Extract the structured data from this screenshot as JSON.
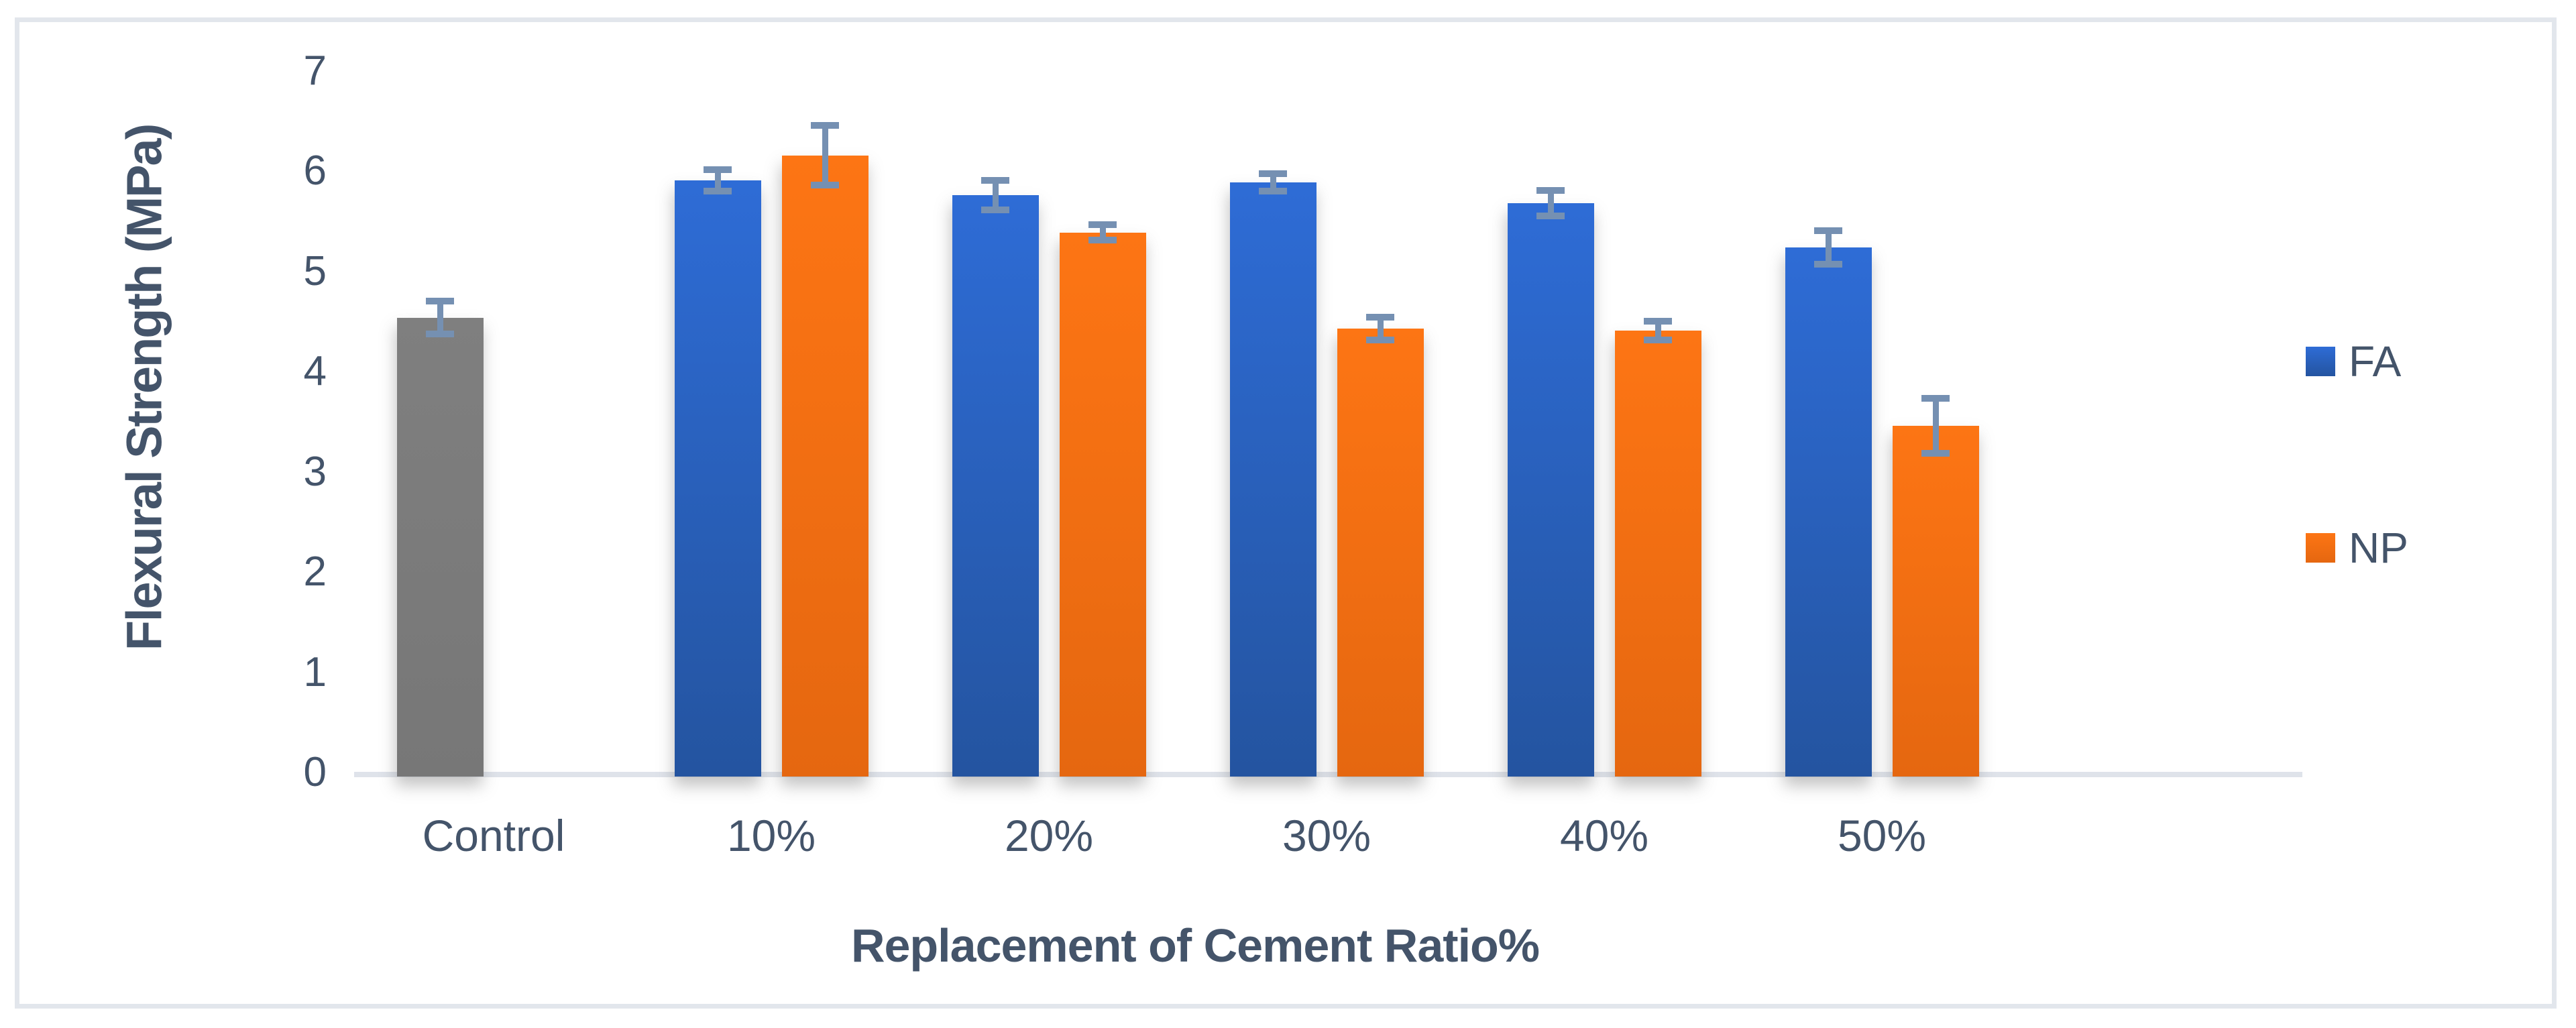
{
  "chart_data": {
    "type": "bar",
    "title": "",
    "ylabel": "Flexural Strength (MPa)",
    "xlabel": "Replacement of Cement Ratio%",
    "categories": [
      "Control",
      "10%",
      "20%",
      "30%",
      "40%",
      "50%"
    ],
    "series": [
      {
        "name": "Control",
        "in_legend": false,
        "color_key": "gray",
        "values": [
          4.54,
          null,
          null,
          null,
          null,
          null
        ],
        "errors": [
          0.2,
          null,
          null,
          null,
          null,
          null
        ]
      },
      {
        "name": "FA",
        "in_legend": true,
        "color_key": "blue",
        "values": [
          null,
          5.91,
          5.76,
          5.89,
          5.68,
          5.24
        ],
        "errors": [
          null,
          0.14,
          0.18,
          0.12,
          0.16,
          0.2
        ]
      },
      {
        "name": "NP",
        "in_legend": true,
        "color_key": "orange",
        "values": [
          null,
          6.16,
          5.39,
          4.43,
          4.41,
          3.46
        ],
        "errors": [
          null,
          0.33,
          0.11,
          0.15,
          0.13,
          0.31
        ]
      }
    ],
    "ylim": [
      0,
      7
    ],
    "ytick_step": 1,
    "yticks": [
      "0",
      "1",
      "2",
      "3",
      "4",
      "5",
      "6",
      "7"
    ],
    "grid": false,
    "error_bars": true,
    "legend_position": "right"
  },
  "legend": {
    "items": [
      {
        "label": "FA",
        "color_key": "blue"
      },
      {
        "label": "NP",
        "color_key": "orange"
      }
    ]
  },
  "colors": {
    "blue_top": "#2E6CD6",
    "blue_bottom": "#2454A0",
    "orange_top": "#FD7514",
    "orange_bottom": "#E56710",
    "gray_top": "#7F7F7F",
    "gray_bottom": "#777777",
    "error_bar": "#7590B2",
    "text": "#44546A",
    "axis_line": "#DFE3EA",
    "frame_border": "#E2E6EC",
    "background": "#FFFFFF"
  }
}
